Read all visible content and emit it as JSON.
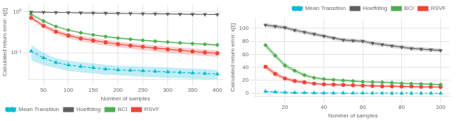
{
  "chart_data": [
    {
      "type": "line",
      "xlabel": "Number of samples",
      "ylabel": "Calculated return error: ε[ξ]",
      "log": "y",
      "grid": true,
      "legend": "lower left",
      "xlim": [
        20,
        410
      ],
      "xticks": [
        50,
        100,
        150,
        200,
        250,
        300,
        350,
        400
      ],
      "ylim": [
        0.022,
        1.5
      ],
      "yticks": [
        {
          "value": 0.1,
          "label": "10⁻¹"
        },
        {
          "value": 1.0,
          "label": "10⁰"
        }
      ],
      "x": [
        25,
        50,
        75,
        100,
        125,
        150,
        175,
        200,
        225,
        250,
        275,
        300,
        325,
        350,
        375,
        400
      ],
      "series": [
        {
          "name": "Mean Transition",
          "color": "#00bcd4",
          "marker": "triangle",
          "line_style": "dashed",
          "values": [
            0.11,
            0.075,
            0.058,
            0.05,
            0.046,
            0.043,
            0.04,
            0.038,
            0.037,
            0.036,
            0.035,
            0.034,
            0.033,
            0.032,
            0.031,
            0.03
          ],
          "band_lo": [
            0.065,
            0.05,
            0.042,
            0.036,
            0.033,
            0.031,
            0.029,
            0.028,
            0.027,
            0.026,
            0.025,
            0.024,
            0.024,
            0.023,
            0.022,
            0.022
          ],
          "band_hi": [
            0.155,
            0.1,
            0.074,
            0.064,
            0.059,
            0.055,
            0.051,
            0.048,
            0.047,
            0.046,
            0.045,
            0.044,
            0.042,
            0.041,
            0.04,
            0.038
          ]
        },
        {
          "name": "Hoeffding",
          "color": "#606060",
          "marker": "triangle_down",
          "line_style": "solid",
          "values": [
            1.0,
            0.99,
            0.975,
            0.965,
            0.955,
            0.945,
            0.935,
            0.925,
            0.918,
            0.91,
            0.902,
            0.895,
            0.887,
            0.88,
            0.874,
            0.868
          ],
          "band_lo": [
            0.995,
            0.985,
            0.97,
            0.96,
            0.95,
            0.94,
            0.93,
            0.92,
            0.913,
            0.905,
            0.897,
            0.89,
            0.882,
            0.875,
            0.869,
            0.863
          ],
          "band_hi": [
            1.005,
            0.995,
            0.98,
            0.97,
            0.96,
            0.95,
            0.94,
            0.93,
            0.923,
            0.915,
            0.907,
            0.9,
            0.892,
            0.885,
            0.879,
            0.873
          ]
        },
        {
          "name": "BCI",
          "color": "#4caf50",
          "marker": "diamond",
          "line_style": "solid",
          "values": [
            0.88,
            0.6,
            0.44,
            0.36,
            0.31,
            0.275,
            0.25,
            0.23,
            0.215,
            0.202,
            0.192,
            0.183,
            0.175,
            0.168,
            0.162,
            0.156
          ],
          "band_lo": [
            0.84,
            0.57,
            0.42,
            0.34,
            0.295,
            0.262,
            0.238,
            0.219,
            0.204,
            0.192,
            0.182,
            0.174,
            0.166,
            0.159,
            0.153,
            0.148
          ],
          "band_hi": [
            0.92,
            0.63,
            0.46,
            0.38,
            0.325,
            0.288,
            0.262,
            0.241,
            0.226,
            0.212,
            0.202,
            0.192,
            0.184,
            0.177,
            0.171,
            0.164
          ]
        },
        {
          "name": "RSVF",
          "color": "#f44336",
          "marker": "circle",
          "line_style": "solid",
          "values": [
            0.72,
            0.46,
            0.33,
            0.265,
            0.225,
            0.2,
            0.18,
            0.163,
            0.15,
            0.14,
            0.13,
            0.122,
            0.115,
            0.108,
            0.102,
            0.097
          ],
          "band_lo": [
            0.64,
            0.4,
            0.28,
            0.225,
            0.19,
            0.168,
            0.15,
            0.136,
            0.125,
            0.116,
            0.107,
            0.1,
            0.094,
            0.088,
            0.083,
            0.079
          ],
          "band_hi": [
            0.8,
            0.52,
            0.38,
            0.305,
            0.26,
            0.232,
            0.21,
            0.19,
            0.175,
            0.164,
            0.153,
            0.144,
            0.136,
            0.128,
            0.121,
            0.115
          ]
        }
      ]
    },
    {
      "type": "line",
      "xlabel": "Number of samples",
      "ylabel": "Calculated return error: ε[ξ]",
      "grid": true,
      "legend": "upper right",
      "xlim": [
        5,
        105
      ],
      "xticks": [
        20,
        40,
        60,
        80,
        100
      ],
      "ylim": [
        -5,
        115
      ],
      "yticks": [
        0,
        20,
        40,
        60,
        80,
        100
      ],
      "x": [
        10,
        15,
        20,
        25,
        30,
        35,
        40,
        45,
        50,
        55,
        60,
        65,
        70,
        75,
        80,
        85,
        90,
        95,
        100
      ],
      "series": [
        {
          "name": "Mean Transition",
          "color": "#00bcd4",
          "marker": "triangle",
          "line_style": "dashed",
          "values": [
            3.0,
            2.2,
            1.5,
            1.1,
            0.9,
            0.7,
            0.6,
            0.55,
            0.5,
            0.45,
            0.4,
            0.38,
            0.35,
            0.32,
            0.3,
            0.28,
            0.25,
            0.23,
            0.2
          ],
          "band_lo": [
            1.5,
            1.0,
            0.7,
            0.5,
            0.4,
            0.32,
            0.28,
            0.25,
            0.22,
            0.2,
            0.18,
            0.17,
            0.16,
            0.15,
            0.14,
            0.13,
            0.12,
            0.11,
            0.1
          ],
          "band_hi": [
            4.5,
            3.4,
            2.3,
            1.7,
            1.4,
            1.1,
            0.92,
            0.85,
            0.78,
            0.7,
            0.62,
            0.59,
            0.54,
            0.49,
            0.46,
            0.43,
            0.38,
            0.35,
            0.3
          ]
        },
        {
          "name": "Hoeffding",
          "color": "#606060",
          "marker": "triangle_down",
          "line_style": "solid",
          "values": [
            105,
            103,
            101,
            97,
            94,
            91,
            88,
            85,
            82,
            81,
            80,
            77,
            75,
            73,
            71,
            69,
            68,
            67,
            66
          ],
          "band_lo": [
            102,
            100,
            98,
            94,
            91,
            88,
            85,
            82,
            79,
            78,
            77,
            74,
            72,
            70,
            68,
            66,
            65,
            64,
            63
          ],
          "band_hi": [
            108,
            106,
            104,
            100,
            97,
            94,
            91,
            88,
            85,
            84,
            83,
            80,
            78,
            76,
            74,
            72,
            71,
            70,
            69
          ]
        },
        {
          "name": "BCI",
          "color": "#4caf50",
          "marker": "diamond",
          "line_style": "solid",
          "values": [
            74,
            58,
            43,
            35,
            28,
            24,
            22,
            21,
            20,
            19,
            18,
            17.5,
            17,
            16.5,
            15.5,
            15.0,
            14.5,
            14.0,
            13.5
          ],
          "band_lo": [
            69,
            54,
            39,
            32,
            25,
            22,
            20,
            19,
            18,
            17,
            16.5,
            16.0,
            15.5,
            15.0,
            14.0,
            13.5,
            13.0,
            12.5,
            12.0
          ],
          "band_hi": [
            79,
            62,
            47,
            38,
            31,
            26,
            24,
            23,
            22,
            21,
            19.5,
            19.0,
            18.5,
            18.0,
            17.0,
            16.5,
            16.0,
            15.5,
            15.0
          ]
        },
        {
          "name": "RSVF",
          "color": "#f44336",
          "marker": "circle",
          "line_style": "solid",
          "values": [
            41,
            30,
            23,
            19,
            17,
            15,
            14,
            13.5,
            13,
            12.5,
            12,
            11.5,
            11,
            11,
            10.5,
            10.5,
            10,
            10,
            9.8
          ],
          "band_lo": [
            37,
            26,
            20,
            16,
            14.5,
            13,
            12,
            11.5,
            11,
            10.5,
            10,
            9.8,
            9.5,
            9.5,
            9.0,
            9.0,
            8.7,
            8.7,
            8.5
          ],
          "band_hi": [
            45,
            34,
            26,
            22,
            19.5,
            17,
            16,
            15.5,
            15,
            14.5,
            14,
            13.2,
            12.5,
            12.5,
            12.0,
            12.0,
            11.3,
            11.3,
            11.1
          ]
        }
      ]
    }
  ]
}
